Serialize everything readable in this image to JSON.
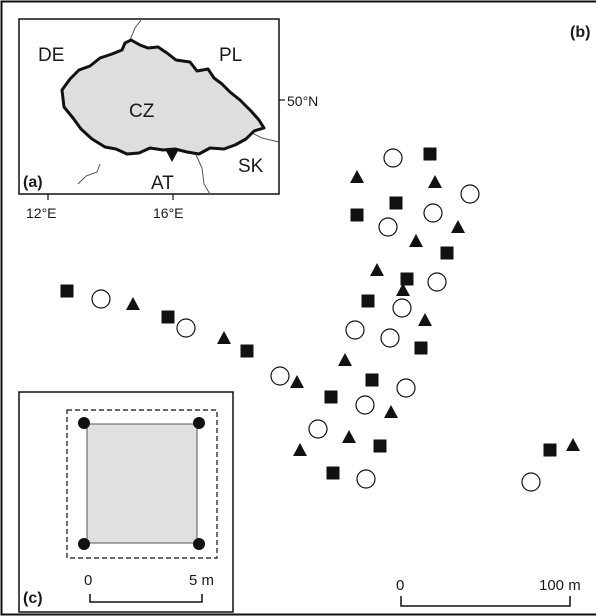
{
  "panels": {
    "a": {
      "label": "(a)",
      "countries": [
        "DE",
        "PL",
        "CZ",
        "AT",
        "SK"
      ],
      "lat_label": "50°N",
      "lon_labels": [
        "12°E",
        "16°E"
      ]
    },
    "b": {
      "label": "(b)"
    },
    "c": {
      "label": "(c)",
      "scale_labels": [
        "0",
        "5 m"
      ]
    }
  },
  "main_scale": {
    "labels": [
      "0",
      "100 m"
    ]
  },
  "colors": {
    "ink": "#111111",
    "cz_fill": "#dedede",
    "plot_fill": "#e0e0e0"
  },
  "symbol_types": [
    "square",
    "circle",
    "triangle"
  ]
}
